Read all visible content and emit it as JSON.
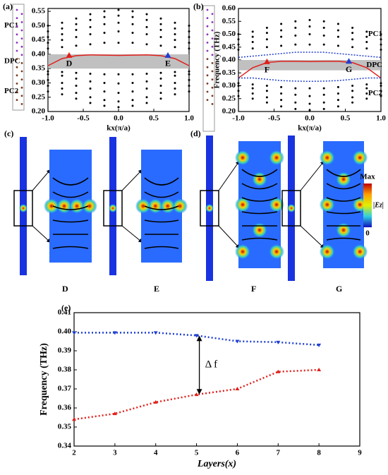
{
  "chart_data": [
    {
      "type": "band",
      "label": "(a)",
      "xlabel": "kx(π/a)",
      "xlim": [
        -1,
        1
      ],
      "xticks": [
        {
          "value": -1,
          "label": "-1.0"
        },
        {
          "value": -0.5,
          "label": "-0.5"
        },
        {
          "value": 0,
          "label": "0.0"
        },
        {
          "value": 0.5,
          "label": "0.5"
        },
        {
          "value": 1,
          "label": "1.0"
        }
      ],
      "ylim": [
        0.2,
        0.56
      ],
      "yticks": [
        {
          "value": 0.2,
          "label": "0.20"
        },
        {
          "value": 0.25,
          "label": "0.25"
        },
        {
          "value": 0.3,
          "label": "0.30"
        },
        {
          "value": 0.35,
          "label": "0.35"
        },
        {
          "value": 0.4,
          "label": "0.40"
        },
        {
          "value": 0.45,
          "label": "0.45"
        },
        {
          "value": 0.5,
          "label": "0.50"
        },
        {
          "value": 0.55,
          "label": "0.55"
        }
      ],
      "gap": [
        0.35,
        0.4
      ],
      "x": [
        -1,
        -0.8,
        -0.6,
        -0.4,
        -0.2,
        0,
        0.2,
        0.4,
        0.6,
        0.8,
        1
      ],
      "bands": [
        [
          0.42,
          0.425,
          0.43,
          0.435,
          0.44,
          0.44,
          0.44,
          0.435,
          0.43,
          0.425,
          0.42
        ],
        [
          0.44,
          0.45,
          0.46,
          0.47,
          0.475,
          0.48,
          0.475,
          0.47,
          0.46,
          0.45,
          0.44
        ],
        [
          0.46,
          0.47,
          0.485,
          0.495,
          0.505,
          0.51,
          0.505,
          0.495,
          0.485,
          0.47,
          0.46
        ],
        [
          0.48,
          0.49,
          0.505,
          0.52,
          0.53,
          0.535,
          0.53,
          0.52,
          0.505,
          0.49,
          0.48
        ],
        [
          0.5,
          0.51,
          0.525,
          0.54,
          0.55,
          0.555,
          0.55,
          0.54,
          0.525,
          0.51,
          0.5
        ],
        [
          0.34,
          0.338,
          0.335,
          0.332,
          0.33,
          0.33,
          0.33,
          0.332,
          0.335,
          0.338,
          0.34
        ],
        [
          0.33,
          0.325,
          0.315,
          0.305,
          0.3,
          0.298,
          0.3,
          0.305,
          0.315,
          0.325,
          0.33
        ],
        [
          0.31,
          0.3,
          0.29,
          0.28,
          0.27,
          0.265,
          0.27,
          0.28,
          0.29,
          0.3,
          0.31
        ],
        [
          0.29,
          0.28,
          0.265,
          0.25,
          0.24,
          0.235,
          0.24,
          0.25,
          0.265,
          0.28,
          0.29
        ],
        [
          0.27,
          0.26,
          0.245,
          0.23,
          0.22,
          0.215,
          0.22,
          0.23,
          0.245,
          0.26,
          0.27
        ]
      ],
      "curves": [
        {
          "color": "#e0201c",
          "dash": false,
          "values": [
            0.36,
            0.385,
            0.395,
            0.398,
            0.397,
            0.396,
            0.397,
            0.398,
            0.395,
            0.385,
            0.36
          ]
        }
      ],
      "markers": [
        {
          "label": "D",
          "x": -0.7,
          "y": 0.395,
          "color": "#e0201c"
        },
        {
          "label": "E",
          "x": 0.7,
          "y": 0.395,
          "color": "#1f3fd0"
        }
      ],
      "region_labels": [
        "PC1",
        "DPC",
        "PC2"
      ]
    },
    {
      "type": "band",
      "label": "(b)",
      "xlabel": "kx(π/a)",
      "ylabel": "Frequency (THz)",
      "xlim": [
        -1,
        1
      ],
      "xticks": [
        {
          "value": -1,
          "label": "-1.0"
        },
        {
          "value": -0.5,
          "label": "-0.5"
        },
        {
          "value": 0,
          "label": "0.0"
        },
        {
          "value": 0.5,
          "label": "0.5"
        },
        {
          "value": 1,
          "label": "1.0"
        }
      ],
      "ylim": [
        0.2,
        0.6
      ],
      "yticks": [
        {
          "value": 0.2,
          "label": "0.20"
        },
        {
          "value": 0.25,
          "label": "0.25"
        },
        {
          "value": 0.3,
          "label": "0.30"
        },
        {
          "value": 0.35,
          "label": "0.35"
        },
        {
          "value": 0.4,
          "label": "0.40"
        },
        {
          "value": 0.45,
          "label": "0.45"
        },
        {
          "value": 0.5,
          "label": "0.50"
        },
        {
          "value": 0.55,
          "label": "0.55"
        },
        {
          "value": 0.6,
          "label": "0.60"
        }
      ],
      "gap": [
        0.36,
        0.4
      ],
      "x": [
        -1,
        -0.8,
        -0.6,
        -0.4,
        -0.2,
        0,
        0.2,
        0.4,
        0.6,
        0.8,
        1
      ],
      "bands": [
        [
          0.44,
          0.445,
          0.45,
          0.455,
          0.46,
          0.46,
          0.46,
          0.455,
          0.45,
          0.445,
          0.44
        ],
        [
          0.46,
          0.47,
          0.48,
          0.49,
          0.495,
          0.5,
          0.495,
          0.49,
          0.48,
          0.47,
          0.46
        ],
        [
          0.48,
          0.49,
          0.505,
          0.515,
          0.525,
          0.53,
          0.525,
          0.515,
          0.505,
          0.49,
          0.48
        ],
        [
          0.5,
          0.51,
          0.525,
          0.54,
          0.55,
          0.555,
          0.55,
          0.54,
          0.525,
          0.51,
          0.5
        ],
        [
          0.31,
          0.305,
          0.3,
          0.295,
          0.29,
          0.29,
          0.29,
          0.295,
          0.3,
          0.305,
          0.31
        ],
        [
          0.3,
          0.29,
          0.28,
          0.27,
          0.265,
          0.26,
          0.265,
          0.27,
          0.28,
          0.29,
          0.3
        ],
        [
          0.28,
          0.27,
          0.255,
          0.245,
          0.235,
          0.23,
          0.235,
          0.245,
          0.255,
          0.27,
          0.28
        ],
        [
          0.26,
          0.25,
          0.235,
          0.22,
          0.21,
          0.205,
          0.21,
          0.22,
          0.235,
          0.25,
          0.26
        ]
      ],
      "curves": [
        {
          "color": "#e0201c",
          "dash": false,
          "values": [
            0.33,
            0.37,
            0.39,
            0.395,
            0.395,
            0.394,
            0.395,
            0.395,
            0.39,
            0.37,
            0.33
          ]
        },
        {
          "color": "#1f3fd0",
          "dash": true,
          "values": [
            0.41,
            0.415,
            0.42,
            0.425,
            0.43,
            0.43,
            0.43,
            0.425,
            0.42,
            0.415,
            0.41
          ]
        },
        {
          "color": "#1f3fd0",
          "dash": true,
          "values": [
            0.33,
            0.33,
            0.325,
            0.32,
            0.318,
            0.317,
            0.318,
            0.32,
            0.325,
            0.33,
            0.33
          ]
        }
      ],
      "markers": [
        {
          "label": "F",
          "x": -0.6,
          "y": 0.392,
          "color": "#e0201c"
        },
        {
          "label": "G",
          "x": 0.55,
          "y": 0.394,
          "color": "#1f3fd0"
        }
      ],
      "region_labels": [
        "PC1",
        "DPC",
        "PC2"
      ]
    },
    {
      "type": "line",
      "label": "(e)",
      "xlabel": "Layers(x)",
      "ylabel": "Frequency (THz)",
      "annotation": "Δ f",
      "x": [
        2,
        3,
        4,
        5,
        6,
        7,
        8
      ],
      "xlim": [
        2,
        9
      ],
      "xticks": [
        2,
        3,
        4,
        5,
        6,
        7,
        8,
        9
      ],
      "ylim": [
        0.34,
        0.41
      ],
      "yticks": [
        {
          "value": 0.34,
          "label": "0.34"
        },
        {
          "value": 0.35,
          "label": "0.35"
        },
        {
          "value": 0.36,
          "label": "0.36"
        },
        {
          "value": 0.37,
          "label": "0.37"
        },
        {
          "value": 0.38,
          "label": "0.38"
        },
        {
          "value": 0.39,
          "label": "0.39"
        },
        {
          "value": 0.4,
          "label": "0.40"
        },
        {
          "value": 0.41,
          "label": "0.41"
        }
      ],
      "series": [
        {
          "color": "#1f3fd0",
          "marker": "down",
          "values": [
            0.3995,
            0.3995,
            0.3995,
            0.398,
            0.395,
            0.3945,
            0.393
          ]
        },
        {
          "color": "#e0201c",
          "marker": "up",
          "values": [
            0.354,
            0.357,
            0.363,
            0.367,
            0.37,
            0.379,
            0.38
          ]
        }
      ]
    }
  ],
  "field_maps": {
    "panels": [
      {
        "label": "(c)",
        "points": [
          "D",
          "E"
        ]
      },
      {
        "label": "(d)",
        "points": [
          "F",
          "G"
        ]
      }
    ],
    "colorbar": {
      "max": "Max",
      "quantity": "|Ez|",
      "min": "0"
    }
  }
}
